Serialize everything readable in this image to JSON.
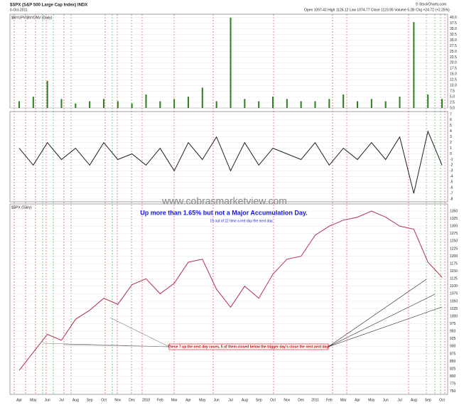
{
  "header": {
    "symbol": "$SPX (S&P 500 Large Cap Index) INDX",
    "date": "6-Oct-2011",
    "quote": "Open 1097.42  High 1126.12  Low 1074.77  Close 1123.95  Volume 5.2B  Chg +24.72 (+2.25%)",
    "credit": "© StockCharts.com",
    "watermark": "www.cobrasmarketview.com"
  },
  "chart_data": [
    {
      "type": "bar",
      "label": "$NYUPV:$NYDNV (Daily)",
      "color": "#2e7d1e",
      "values": [
        3,
        5,
        12,
        4,
        2,
        3,
        4,
        3,
        2,
        6,
        3,
        4,
        5,
        9,
        3,
        40,
        4,
        3,
        5,
        4,
        3,
        3,
        4,
        6,
        3,
        4,
        3,
        5,
        38,
        6,
        4
      ],
      "ylim": [
        0,
        41.5
      ],
      "yticks": [
        {
          "value": 0,
          "label": "0.0"
        },
        {
          "value": 2.5,
          "label": "2.5"
        },
        {
          "value": 5,
          "label": "5.0"
        },
        {
          "value": 7.5,
          "label": "7.5"
        },
        {
          "value": 10,
          "label": "10.0"
        },
        {
          "value": 12.5,
          "label": "12.5"
        },
        {
          "value": 15,
          "label": "15.0"
        },
        {
          "value": 17.5,
          "label": "17.5"
        },
        {
          "value": 20,
          "label": "20.0"
        },
        {
          "value": 22.5,
          "label": "22.5"
        },
        {
          "value": 25,
          "label": "25.0"
        },
        {
          "value": 27.5,
          "label": "27.5"
        },
        {
          "value": 30,
          "label": "30.0"
        },
        {
          "value": 32.5,
          "label": "32.5"
        },
        {
          "value": 35,
          "label": "35.0"
        },
        {
          "value": 37.5,
          "label": "37.5"
        },
        {
          "value": 40,
          "label": "40.0"
        }
      ]
    },
    {
      "type": "line",
      "color": "#222222",
      "values": [
        1,
        -2,
        2,
        -1,
        1,
        -2,
        2,
        -1,
        0,
        -2,
        1,
        -3,
        2,
        -1,
        3,
        -3,
        2,
        -2,
        1,
        0,
        -1,
        2,
        -2,
        1,
        -1,
        2,
        -1,
        3,
        -7,
        4,
        -2
      ],
      "ylim": [
        -8.5,
        7.5
      ],
      "yticks": [
        -8,
        -7,
        -6,
        -5,
        -4,
        -3,
        -2,
        -1,
        0,
        1,
        2,
        3,
        4,
        5,
        6,
        7
      ]
    },
    {
      "type": "line",
      "label": "$SPX (Daily)",
      "color": "#b03050",
      "title": "Up more than 1.65% but not a Major Accumulation Day.",
      "subtitle": "15 out of 22 time a red day the next day.",
      "annotation": "These 7 up the next day cases, 5 of them closed below the trigger day's close the next next day!",
      "categories": [
        "Apr",
        "May",
        "Jun",
        "Jul",
        "Aug",
        "Sep",
        "Oct",
        "Nov",
        "Dec",
        "2010",
        "Feb",
        "Mar",
        "Apr",
        "May",
        "Jun",
        "Jul",
        "Aug",
        "Sep",
        "Oct",
        "Nov",
        "Dec",
        "2011",
        "Feb",
        "Mar",
        "Apr",
        "May",
        "Jun",
        "Jul",
        "Aug",
        "Sep",
        "Oct"
      ],
      "values": [
        820,
        880,
        940,
        920,
        990,
        1020,
        1060,
        1040,
        1105,
        1125,
        1075,
        1110,
        1180,
        1190,
        1090,
        1030,
        1100,
        1060,
        1140,
        1190,
        1200,
        1270,
        1300,
        1320,
        1330,
        1350,
        1330,
        1300,
        1290,
        1180,
        1130
      ],
      "ylim": [
        740,
        1374
      ],
      "yticks": [
        750,
        775,
        800,
        825,
        850,
        875,
        900,
        925,
        950,
        975,
        1000,
        1025,
        1050,
        1075,
        1100,
        1125,
        1150,
        1175,
        1200,
        1225,
        1250,
        1275,
        1300,
        1325,
        1350
      ]
    }
  ]
}
